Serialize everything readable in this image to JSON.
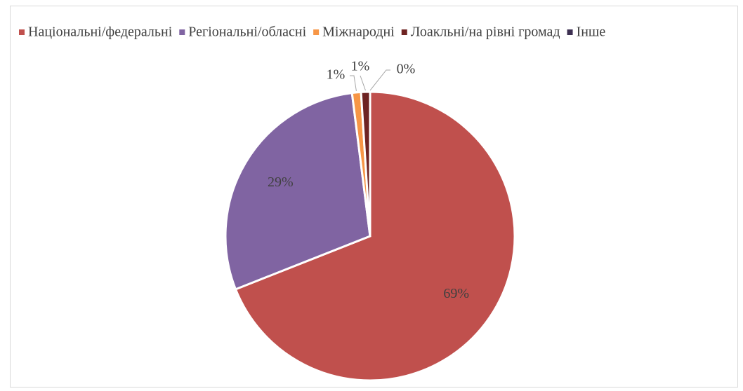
{
  "chart_data": {
    "type": "pie",
    "categories": [
      "Національні/федеральні",
      "Регіональні/обласні",
      "Міжнародні",
      "Лоакльні/на рівні громад",
      "Інше"
    ],
    "values": [
      69,
      29,
      1,
      1,
      0
    ],
    "value_labels": [
      "69%",
      "29%",
      "1%",
      "1%",
      "0%"
    ],
    "colors": [
      "#c0504d",
      "#8064a2",
      "#f79646",
      "#6e2322",
      "#3d3052"
    ],
    "legend": "top"
  }
}
